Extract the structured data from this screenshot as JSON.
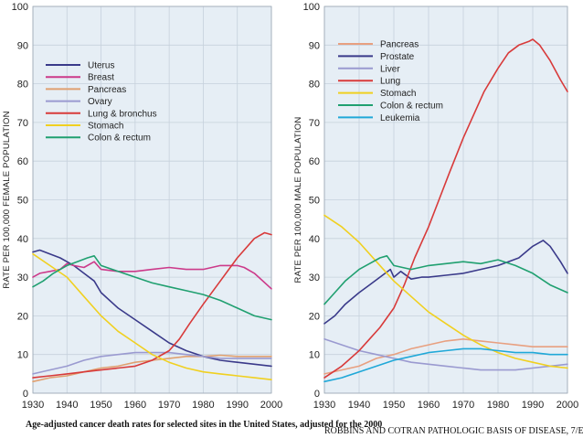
{
  "caption": "Age-adjusted cancer death rates for selected sites in the United States, adjusted for the 2000",
  "credit": "ROBBINS AND COTRAN PATHOLOGIC BASIS OF DISEASE, 7/E",
  "chart_data": [
    {
      "type": "line",
      "ylabel": "RATE PER 100,000 FEMALE POPULATION",
      "xlim": [
        1930,
        2000
      ],
      "ylim": [
        0,
        100
      ],
      "xticks": [
        1930,
        1940,
        1950,
        1960,
        1970,
        1980,
        1990,
        2000
      ],
      "yticks": [
        0,
        10,
        20,
        30,
        40,
        50,
        60,
        70,
        80,
        90,
        100
      ],
      "grid": true,
      "legend_position": "upper-left",
      "series": [
        {
          "name": "Uterus",
          "color": "#3a3a8a",
          "x": [
            1930,
            1932,
            1935,
            1938,
            1940,
            1942,
            1945,
            1948,
            1950,
            1955,
            1960,
            1965,
            1970,
            1975,
            1980,
            1985,
            1990,
            1995,
            2000
          ],
          "y": [
            36.5,
            37,
            36,
            35,
            34,
            33,
            31,
            29,
            26,
            22,
            19,
            16,
            13,
            11,
            9.5,
            8.5,
            8,
            7.5,
            7
          ]
        },
        {
          "name": "Breast",
          "color": "#cc3a8a",
          "x": [
            1930,
            1932,
            1935,
            1938,
            1940,
            1942,
            1945,
            1948,
            1950,
            1955,
            1960,
            1965,
            1970,
            1975,
            1980,
            1985,
            1990,
            1992,
            1995,
            2000
          ],
          "y": [
            30,
            31,
            31.5,
            32,
            33.5,
            33,
            32.5,
            34,
            32,
            31.5,
            31.5,
            32,
            32.5,
            32,
            32,
            33,
            33,
            32.5,
            31,
            27
          ]
        },
        {
          "name": "Pancreas",
          "color": "#e0a070",
          "x": [
            1930,
            1935,
            1940,
            1945,
            1950,
            1955,
            1960,
            1965,
            1970,
            1975,
            1980,
            1985,
            1990,
            1995,
            2000
          ],
          "y": [
            3,
            4,
            4.5,
            5.5,
            6.5,
            7,
            8,
            8.5,
            9,
            9.5,
            9.5,
            9.8,
            9.5,
            9.5,
            9.5
          ]
        },
        {
          "name": "Ovary",
          "color": "#9a9ad0",
          "x": [
            1930,
            1935,
            1940,
            1945,
            1950,
            1955,
            1960,
            1965,
            1970,
            1975,
            1980,
            1985,
            1990,
            1995,
            2000
          ],
          "y": [
            5,
            6,
            7,
            8.5,
            9.5,
            10,
            10.5,
            10.5,
            10.5,
            10,
            9.5,
            9,
            9,
            9,
            9
          ]
        },
        {
          "name": "Lung & bronchus",
          "color": "#d83a3a",
          "x": [
            1930,
            1935,
            1940,
            1945,
            1950,
            1955,
            1960,
            1965,
            1970,
            1973,
            1976,
            1980,
            1985,
            1990,
            1995,
            1998,
            2000
          ],
          "y": [
            4,
            4.5,
            5,
            5.5,
            6,
            6.5,
            7,
            8.5,
            11,
            14,
            18,
            23,
            29,
            35,
            40,
            41.5,
            41
          ]
        },
        {
          "name": "Stomach",
          "color": "#f0d020",
          "x": [
            1930,
            1935,
            1940,
            1945,
            1950,
            1955,
            1960,
            1965,
            1970,
            1975,
            1980,
            1985,
            1990,
            1995,
            2000
          ],
          "y": [
            36,
            33,
            30,
            25,
            20,
            16,
            13,
            10,
            8,
            6.5,
            5.5,
            5,
            4.5,
            4,
            3.5
          ]
        },
        {
          "name": "Colon & rectum",
          "color": "#20a070",
          "x": [
            1930,
            1933,
            1936,
            1940,
            1943,
            1946,
            1948,
            1950,
            1955,
            1960,
            1965,
            1970,
            1975,
            1980,
            1985,
            1990,
            1995,
            2000
          ],
          "y": [
            27.5,
            29,
            31,
            33,
            34,
            35,
            35.5,
            33,
            31.5,
            30,
            28.5,
            27.5,
            26.5,
            25.5,
            24,
            22,
            20,
            19
          ]
        }
      ]
    },
    {
      "type": "line",
      "ylabel": "RATE PER 100,000 MALE POPULATION",
      "xlim": [
        1930,
        2000
      ],
      "ylim": [
        0,
        100
      ],
      "xticks": [
        1930,
        1940,
        1950,
        1960,
        1970,
        1980,
        1990,
        2000
      ],
      "yticks": [
        0,
        10,
        20,
        30,
        40,
        50,
        60,
        70,
        80,
        90,
        100
      ],
      "grid": true,
      "legend_position": "upper-left",
      "series": [
        {
          "name": "Pancreas",
          "color": "#e8a080",
          "x": [
            1930,
            1935,
            1940,
            1945,
            1950,
            1955,
            1960,
            1965,
            1970,
            1975,
            1980,
            1985,
            1990,
            1995,
            2000
          ],
          "y": [
            5,
            6,
            7,
            9,
            10,
            11.5,
            12.5,
            13.5,
            14,
            13.5,
            13,
            12.5,
            12,
            12,
            12
          ]
        },
        {
          "name": "Prostate",
          "color": "#3a3a8a",
          "x": [
            1930,
            1933,
            1936,
            1940,
            1943,
            1946,
            1949,
            1950,
            1952,
            1955,
            1958,
            1960,
            1965,
            1970,
            1975,
            1980,
            1983,
            1986,
            1990,
            1993,
            1995,
            1998,
            2000
          ],
          "y": [
            18,
            20,
            23,
            26,
            28,
            30,
            32,
            30,
            31.5,
            29.5,
            30,
            30,
            30.5,
            31,
            32,
            33,
            34,
            35,
            38,
            39.5,
            38,
            34,
            31
          ]
        },
        {
          "name": "Liver",
          "color": "#9a9ad0",
          "x": [
            1930,
            1935,
            1940,
            1945,
            1950,
            1955,
            1960,
            1965,
            1970,
            1975,
            1980,
            1985,
            1990,
            1995,
            2000
          ],
          "y": [
            14,
            12.5,
            11,
            10,
            9,
            8,
            7.5,
            7,
            6.5,
            6,
            6,
            6,
            6.5,
            7,
            7.5
          ]
        },
        {
          "name": "Lung",
          "color": "#d83a3a",
          "x": [
            1930,
            1935,
            1940,
            1943,
            1946,
            1950,
            1953,
            1956,
            1960,
            1963,
            1966,
            1970,
            1973,
            1976,
            1980,
            1983,
            1986,
            1989,
            1990,
            1992,
            1995,
            1998,
            2000
          ],
          "y": [
            4,
            7,
            11,
            14,
            17,
            22,
            28,
            35,
            43,
            50,
            57,
            66,
            72,
            78,
            84,
            88,
            90,
            91,
            91.5,
            90,
            86,
            81,
            78
          ]
        },
        {
          "name": "Stomach",
          "color": "#f0d020",
          "x": [
            1930,
            1935,
            1940,
            1945,
            1950,
            1955,
            1960,
            1965,
            1970,
            1975,
            1980,
            1985,
            1990,
            1995,
            2000
          ],
          "y": [
            46,
            43,
            39,
            34,
            29,
            25,
            21,
            18,
            15,
            12.5,
            10.5,
            9,
            8,
            7,
            6.5
          ]
        },
        {
          "name": "Colon & rectum",
          "color": "#20a070",
          "x": [
            1930,
            1933,
            1936,
            1940,
            1943,
            1946,
            1948,
            1950,
            1955,
            1960,
            1965,
            1970,
            1975,
            1980,
            1985,
            1990,
            1995,
            2000
          ],
          "y": [
            23,
            26,
            29,
            32,
            33.5,
            35,
            35.5,
            33,
            32,
            33,
            33.5,
            34,
            33.5,
            34.5,
            33,
            31,
            28,
            26
          ]
        },
        {
          "name": "Leukemia",
          "color": "#20a8d8",
          "x": [
            1930,
            1935,
            1940,
            1945,
            1950,
            1955,
            1960,
            1965,
            1970,
            1975,
            1980,
            1985,
            1990,
            1995,
            2000
          ],
          "y": [
            3,
            4,
            5.5,
            7,
            8.5,
            9.5,
            10.5,
            11,
            11.5,
            11.5,
            11,
            10.5,
            10.5,
            10,
            10
          ]
        }
      ]
    }
  ]
}
